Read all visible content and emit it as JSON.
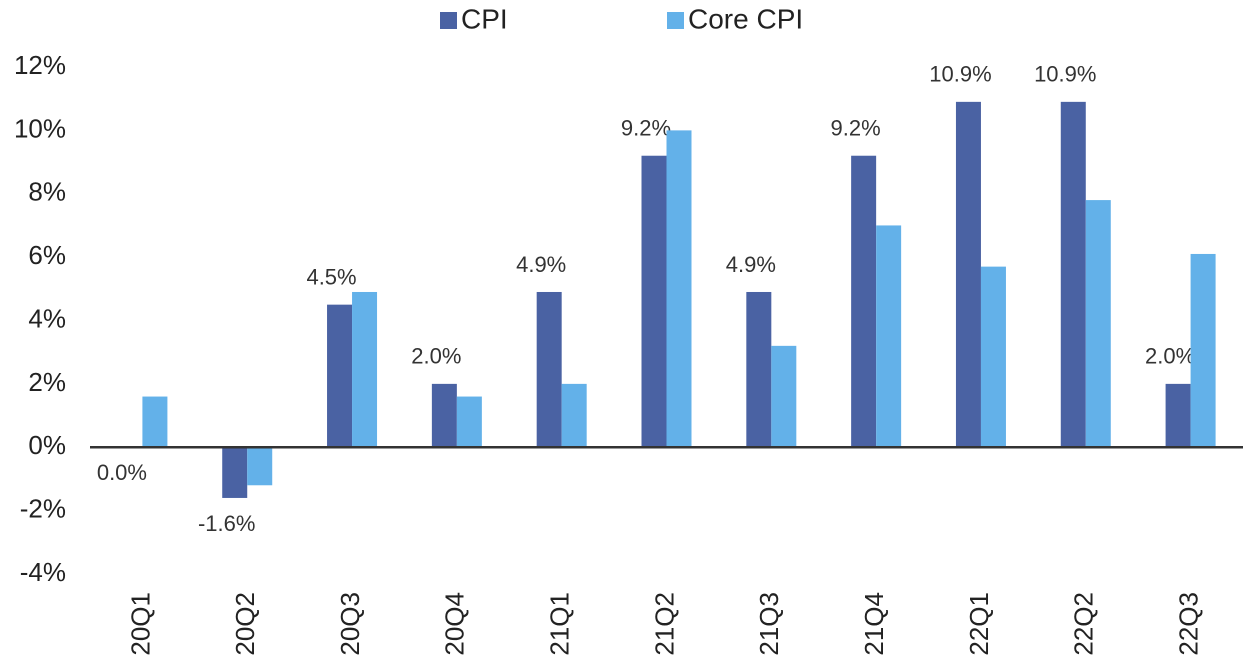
{
  "chart_data": {
    "type": "bar",
    "categories": [
      "20Q1",
      "20Q2",
      "20Q3",
      "20Q4",
      "21Q1",
      "21Q2",
      "21Q3",
      "21Q4",
      "22Q1",
      "22Q2",
      "22Q3"
    ],
    "series": [
      {
        "name": "CPI",
        "color": "#4a62a3",
        "values": [
          0.0,
          -1.6,
          4.5,
          2.0,
          4.9,
          9.2,
          4.9,
          9.2,
          10.9,
          10.9,
          2.0
        ],
        "value_labels": [
          "0.0%",
          "-1.6%",
          "4.5%",
          "2.0%",
          "4.9%",
          "9.2%",
          "4.9%",
          "9.2%",
          "10.9%",
          "10.9%",
          "2.0%"
        ]
      },
      {
        "name": "Core CPI",
        "color": "#63b1e9",
        "values": [
          1.6,
          -1.2,
          4.9,
          1.6,
          2.0,
          10.0,
          3.2,
          7.0,
          5.7,
          7.8,
          6.1
        ]
      }
    ],
    "ylim": [
      -4,
      12
    ],
    "yticks": [
      {
        "value": -4,
        "label": "-4%"
      },
      {
        "value": -2,
        "label": "-2%"
      },
      {
        "value": 0,
        "label": "0%"
      },
      {
        "value": 2,
        "label": "2%"
      },
      {
        "value": 4,
        "label": "4%"
      },
      {
        "value": 6,
        "label": "6%"
      },
      {
        "value": 8,
        "label": "8%"
      },
      {
        "value": 10,
        "label": "10%"
      },
      {
        "value": 12,
        "label": "12%"
      }
    ],
    "grid": false,
    "legend": "top"
  }
}
